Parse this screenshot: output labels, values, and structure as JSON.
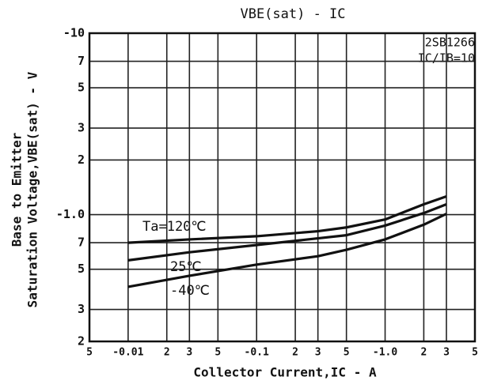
{
  "chart_data": {
    "type": "line",
    "title": "VBE(sat) - IC",
    "xlabel": "Collector Current,IC - A",
    "ylabel": [
      "Base to Emitter",
      "Saturation Voltage,VBE(sat) - V"
    ],
    "annotations": [
      "2SB1266",
      "IC/IB=10"
    ],
    "log_x": true,
    "log_y": true,
    "grid": true,
    "xlim": [
      0.005,
      5
    ],
    "ylim": [
      0.2,
      10
    ],
    "xticks": [
      {
        "value": 0.005,
        "label": "5"
      },
      {
        "value": 0.01,
        "label": "-0.01"
      },
      {
        "value": 0.02,
        "label": "2"
      },
      {
        "value": 0.03,
        "label": "3"
      },
      {
        "value": 0.05,
        "label": "5"
      },
      {
        "value": 0.1,
        "label": "-0.1"
      },
      {
        "value": 0.2,
        "label": "2"
      },
      {
        "value": 0.3,
        "label": "3"
      },
      {
        "value": 0.5,
        "label": "5"
      },
      {
        "value": 1,
        "label": "-1.0"
      },
      2,
      3,
      5
    ],
    "yticks": [
      {
        "value": 0.2,
        "label": "2"
      },
      {
        "value": 0.3,
        "label": "3"
      },
      {
        "value": 0.5,
        "label": "5"
      },
      {
        "value": 0.7,
        "label": "7"
      },
      {
        "value": 1,
        "label": "-1.0"
      },
      2,
      3,
      5,
      7,
      {
        "value": 10,
        "label": "-10"
      }
    ],
    "x": [
      0.01,
      0.03,
      0.1,
      0.3,
      0.5,
      1,
      2,
      3
    ],
    "series": [
      {
        "name": "Ta=120℃",
        "color": "#111111",
        "values": [
          0.7,
          0.73,
          0.76,
          0.81,
          0.85,
          0.94,
          1.14,
          1.26
        ]
      },
      {
        "name": "25℃",
        "color": "#111111",
        "values": [
          0.56,
          0.62,
          0.68,
          0.74,
          0.77,
          0.87,
          1.02,
          1.14
        ]
      },
      {
        "name": "-40℃",
        "color": "#111111",
        "values": [
          0.4,
          0.46,
          0.53,
          0.59,
          0.64,
          0.73,
          0.88,
          1.01
        ]
      }
    ]
  }
}
